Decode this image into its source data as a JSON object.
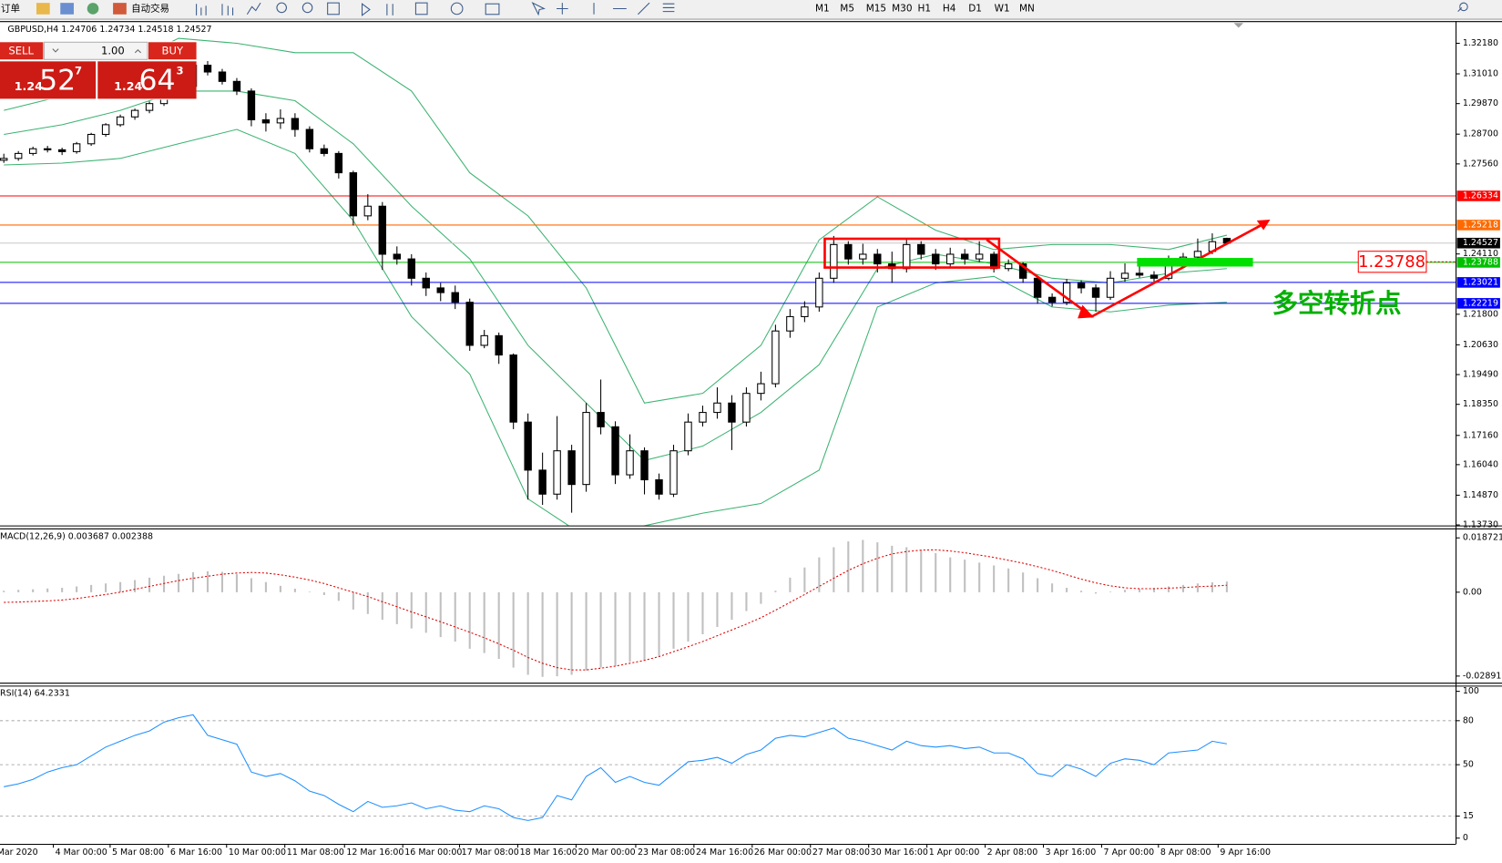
{
  "toolbar": {
    "orders": "订单",
    "autotrade": "自动交易",
    "periods": [
      "M1",
      "M5",
      "M15",
      "M30",
      "H1",
      "H4",
      "D1",
      "W1",
      "MN"
    ]
  },
  "trade_panel": {
    "sell": "SELL",
    "buy": "BUY",
    "lot": "1.00",
    "sell_big": "1.24",
    "sell_pips": "52",
    "sell_frac": "7",
    "buy_big": "1.24",
    "buy_pips": "64",
    "buy_frac": "3"
  },
  "chart_data": [
    {
      "type": "candlestick",
      "title": "GBPUSD,H4  1.24706 1.24734 1.24518 1.24527",
      "open": [
        1.277,
        1.2777,
        1.2796,
        1.2814,
        1.281,
        1.2803,
        1.2833,
        1.2869,
        1.2906,
        1.2936,
        1.2961,
        1.2987,
        1.3016,
        1.3053,
        1.3134,
        1.3108,
        1.3072,
        1.3035,
        1.2925,
        1.2913,
        1.293,
        1.2888,
        1.2814,
        1.2796,
        1.2722,
        1.2557,
        1.2594,
        1.241,
        1.2392,
        1.2318,
        1.2281,
        1.2263,
        1.2226,
        1.2061,
        1.2098,
        1.2024,
        1.1767,
        1.1583,
        1.1491,
        1.1657,
        1.1528,
        1.1804,
        1.1749,
        1.1565,
        1.1657,
        1.1546,
        1.1491,
        1.1657,
        1.1767,
        1.1804,
        1.184,
        1.1767,
        1.1877,
        1.1914,
        1.2116,
        1.2171,
        1.2208,
        1.2318,
        1.2447,
        1.2392,
        1.241,
        1.2373,
        1.2355,
        1.2447,
        1.241,
        1.2373,
        1.241,
        1.2392,
        1.241,
        1.2355,
        1.2373,
        1.2318,
        1.2245,
        1.2226,
        1.23,
        1.2281,
        1.2245,
        1.2318,
        1.2337,
        1.233,
        1.2318,
        1.2392,
        1.2399,
        1.2421,
        1.24706
      ],
      "high": [
        1.2795,
        1.2805,
        1.2822,
        1.2825,
        1.2818,
        1.284,
        1.2875,
        1.2912,
        1.2945,
        1.2968,
        1.2995,
        1.3025,
        1.307,
        1.32,
        1.315,
        1.312,
        1.3085,
        1.3045,
        1.295,
        1.2965,
        1.295,
        1.29,
        1.283,
        1.2805,
        1.273,
        1.264,
        1.261,
        1.244,
        1.241,
        1.234,
        1.23,
        1.229,
        1.224,
        1.212,
        1.211,
        1.203,
        1.18,
        1.165,
        1.179,
        1.168,
        1.184,
        1.193,
        1.177,
        1.172,
        1.167,
        1.157,
        1.168,
        1.18,
        1.183,
        1.19,
        1.187,
        1.19,
        1.196,
        1.214,
        1.22,
        1.223,
        1.234,
        1.248,
        1.246,
        1.245,
        1.243,
        1.242,
        1.247,
        1.246,
        1.243,
        1.2435,
        1.243,
        1.246,
        1.242,
        1.239,
        1.238,
        1.2325,
        1.226,
        1.2315,
        1.231,
        1.2295,
        1.2345,
        1.2375,
        1.2365,
        1.2345,
        1.2405,
        1.2415,
        1.247,
        1.249,
        1.24734
      ],
      "low": [
        1.276,
        1.2768,
        1.2788,
        1.28,
        1.279,
        1.2795,
        1.2825,
        1.286,
        1.2898,
        1.2925,
        1.295,
        1.2978,
        1.3005,
        1.304,
        1.3095,
        1.306,
        1.302,
        1.29,
        1.288,
        1.289,
        1.286,
        1.28,
        1.2785,
        1.27,
        1.252,
        1.254,
        1.235,
        1.237,
        1.229,
        1.225,
        1.223,
        1.22,
        1.204,
        1.205,
        1.199,
        1.174,
        1.147,
        1.145,
        1.147,
        1.142,
        1.15,
        1.172,
        1.153,
        1.155,
        1.149,
        1.147,
        1.148,
        1.164,
        1.175,
        1.178,
        1.166,
        1.175,
        1.185,
        1.19,
        1.209,
        1.215,
        1.219,
        1.23,
        1.237,
        1.237,
        1.234,
        1.23,
        1.234,
        1.239,
        1.235,
        1.236,
        1.237,
        1.238,
        1.234,
        1.2345,
        1.23,
        1.222,
        1.221,
        1.2215,
        1.226,
        1.219,
        1.2235,
        1.2305,
        1.232,
        1.23,
        1.231,
        1.238,
        1.239,
        1.241,
        1.24518
      ],
      "close": [
        1.2777,
        1.2796,
        1.2814,
        1.281,
        1.2803,
        1.2833,
        1.2869,
        1.2906,
        1.2936,
        1.2961,
        1.2987,
        1.3016,
        1.3053,
        1.3134,
        1.3108,
        1.3072,
        1.3035,
        1.2925,
        1.2913,
        1.293,
        1.2888,
        1.2814,
        1.2796,
        1.2722,
        1.2557,
        1.2594,
        1.241,
        1.2392,
        1.2318,
        1.2281,
        1.2263,
        1.2226,
        1.2061,
        1.2098,
        1.2024,
        1.1767,
        1.1583,
        1.1491,
        1.1657,
        1.1528,
        1.1804,
        1.1749,
        1.1565,
        1.1657,
        1.1546,
        1.1491,
        1.1657,
        1.1767,
        1.1804,
        1.184,
        1.1767,
        1.1877,
        1.1914,
        1.2116,
        1.2171,
        1.2208,
        1.2318,
        1.2447,
        1.2392,
        1.241,
        1.2373,
        1.2355,
        1.2447,
        1.241,
        1.2373,
        1.241,
        1.2392,
        1.241,
        1.2355,
        1.2373,
        1.2318,
        1.2245,
        1.2226,
        1.23,
        1.2281,
        1.2245,
        1.2318,
        1.2337,
        1.233,
        1.2318,
        1.2392,
        1.2399,
        1.2421,
        1.2458,
        1.24527
      ],
      "up_color": "#ffffff",
      "down_color": "#000000",
      "bands": {
        "color": "#3cb371",
        "x": [
          0,
          4,
          8,
          12,
          16,
          20,
          24,
          28,
          32,
          36,
          40,
          44,
          48,
          52,
          56,
          60,
          64,
          68,
          72,
          76,
          80,
          84
        ],
        "upper": [
          1.2961,
          1.3016,
          1.3127,
          1.3237,
          1.3218,
          1.3182,
          1.3182,
          1.3035,
          1.2722,
          1.2557,
          1.2281,
          1.184,
          1.1877,
          1.2061,
          1.2465,
          1.263,
          1.2502,
          1.2428,
          1.2447,
          1.2447,
          1.2428,
          1.2483
        ],
        "middle": [
          1.2869,
          1.2906,
          1.2961,
          1.3035,
          1.3035,
          1.2998,
          1.2833,
          1.2594,
          1.2392,
          1.2061,
          1.184,
          1.162,
          1.1675,
          1.1804,
          1.1987,
          1.2355,
          1.241,
          1.2373,
          1.2318,
          1.23,
          1.2337,
          1.2355
        ],
        "lower": [
          1.2752,
          1.2759,
          1.2777,
          1.2833,
          1.2888,
          1.2796,
          1.2539,
          1.2171,
          1.1951,
          1.1473,
          1.1326,
          1.137,
          1.1418,
          1.1455,
          1.1583,
          1.2208,
          1.23,
          1.2325,
          1.2208,
          1.2189,
          1.2215,
          1.2226
        ]
      },
      "levels": [
        {
          "value": 1.26334,
          "color": "#ff0000"
        },
        {
          "value": 1.25218,
          "color": "#ff6a00"
        },
        {
          "value": 1.24527,
          "color": "#000000",
          "line_color": "#c8c8c8"
        },
        {
          "value": 1.23788,
          "color": "#00c000"
        },
        {
          "value": 1.23021,
          "color": "#0000ff"
        },
        {
          "value": 1.22219,
          "color": "#0000ff"
        }
      ],
      "annotations": {
        "label": "1.23788",
        "note": "多空转折点"
      },
      "ylim": [
        1.1371,
        1.3303
      ],
      "yticks": [
        {
          "value": 1.3218,
          "label": "1.32180"
        },
        {
          "value": 1.3101,
          "label": "1.31010"
        },
        {
          "value": 1.2987,
          "label": "1.29870"
        },
        {
          "value": 1.287,
          "label": "1.28700"
        },
        {
          "value": 1.2756,
          "label": "1.27560"
        },
        {
          "value": 1.2411,
          "label": "1.24110"
        },
        {
          "value": 1.218,
          "label": "1.21800"
        },
        {
          "value": 1.2063,
          "label": "1.20630"
        },
        {
          "value": 1.1949,
          "label": "1.19490"
        },
        {
          "value": 1.1835,
          "label": "1.18350"
        },
        {
          "value": 1.1716,
          "label": "1.17160"
        },
        {
          "value": 1.1604,
          "label": "1.16040"
        },
        {
          "value": 1.1487,
          "label": "1.14870"
        },
        {
          "value": 1.1373,
          "label": "1.13730"
        }
      ],
      "xlim": [
        -0.263,
        99.74
      ],
      "xticks": [
        {
          "value": -0.6,
          "label": "Mar 2020"
        },
        {
          "value": 3.4,
          "label": "4 Mar 00:00"
        },
        {
          "value": 7.3,
          "label": "5 Mar 08:00"
        },
        {
          "value": 11.3,
          "label": "6 Mar 16:00"
        },
        {
          "value": 15.3,
          "label": "10 Mar 00:00"
        },
        {
          "value": 19.3,
          "label": "11 Mar 08:00"
        },
        {
          "value": 23.4,
          "label": "12 Mar 16:00"
        },
        {
          "value": 27.4,
          "label": "16 Mar 00:00"
        },
        {
          "value": 31.3,
          "label": "17 Mar 08:00"
        },
        {
          "value": 35.3,
          "label": "18 Mar 16:00"
        },
        {
          "value": 39.3,
          "label": "20 Mar 00:00"
        },
        {
          "value": 43.4,
          "label": "23 Mar 08:00"
        },
        {
          "value": 47.4,
          "label": "24 Mar 16:00"
        },
        {
          "value": 51.4,
          "label": "26 Mar 00:00"
        },
        {
          "value": 55.4,
          "label": "27 Mar 08:00"
        },
        {
          "value": 59.4,
          "label": "30 Mar 16:00"
        },
        {
          "value": 63.4,
          "label": "1 Apr 00:00"
        },
        {
          "value": 67.4,
          "label": "2 Apr 08:00"
        },
        {
          "value": 71.4,
          "label": "3 Apr 16:00"
        },
        {
          "value": 75.4,
          "label": "7 Apr 00:00"
        },
        {
          "value": 79.3,
          "label": "8 Apr 08:00"
        },
        {
          "value": 83.4,
          "label": "9 Apr 16:00"
        }
      ]
    },
    {
      "type": "macd",
      "title": "MACD(12,26,9) 0.003687 0.002388",
      "histogram": [
        0.0005,
        0.0008,
        0.001,
        0.0013,
        0.0015,
        0.002,
        0.0025,
        0.003,
        0.0035,
        0.0042,
        0.005,
        0.0057,
        0.0063,
        0.0069,
        0.0072,
        0.007,
        0.0062,
        0.0048,
        0.0035,
        0.0022,
        0.0012,
        0.0002,
        -0.001,
        -0.003,
        -0.006,
        -0.0075,
        -0.0095,
        -0.011,
        -0.0125,
        -0.014,
        -0.0155,
        -0.017,
        -0.0195,
        -0.021,
        -0.023,
        -0.026,
        -0.0285,
        -0.0292,
        -0.029,
        -0.0285,
        -0.027,
        -0.026,
        -0.0255,
        -0.024,
        -0.0235,
        -0.022,
        -0.0195,
        -0.017,
        -0.0145,
        -0.012,
        -0.0095,
        -0.0065,
        -0.004,
        0.0005,
        0.005,
        0.0085,
        0.012,
        0.0155,
        0.0175,
        0.018,
        0.0172,
        0.016,
        0.0155,
        0.0145,
        0.0135,
        0.012,
        0.0112,
        0.0102,
        0.0092,
        0.0082,
        0.0068,
        0.0048,
        0.003,
        0.0015,
        0.0005,
        -0.0005,
        0.0002,
        0.0008,
        0.0012,
        0.0015,
        0.002,
        0.0025,
        0.003,
        0.0034,
        0.003687
      ],
      "signal": [
        -0.0035,
        -0.0034,
        -0.0032,
        -0.003,
        -0.0027,
        -0.0022,
        -0.0015,
        -0.0008,
        0.0,
        0.001,
        0.002,
        0.003,
        0.004,
        0.0048,
        0.0055,
        0.0062,
        0.0066,
        0.0068,
        0.0066,
        0.006,
        0.0052,
        0.0042,
        0.003,
        0.0015,
        0.0,
        -0.0015,
        -0.0033,
        -0.005,
        -0.0068,
        -0.0085,
        -0.0102,
        -0.012,
        -0.0138,
        -0.0157,
        -0.0178,
        -0.02,
        -0.0225,
        -0.0245,
        -0.026,
        -0.0268,
        -0.0268,
        -0.0262,
        -0.0255,
        -0.0245,
        -0.0235,
        -0.0222,
        -0.0205,
        -0.0188,
        -0.017,
        -0.015,
        -0.013,
        -0.011,
        -0.0088,
        -0.0062,
        -0.0035,
        -0.0008,
        0.002,
        0.0048,
        0.0075,
        0.0098,
        0.0117,
        0.0132,
        0.014,
        0.0145,
        0.0146,
        0.0142,
        0.0136,
        0.0128,
        0.012,
        0.011,
        0.01,
        0.0088,
        0.0075,
        0.006,
        0.0045,
        0.0032,
        0.0022,
        0.0015,
        0.0012,
        0.0012,
        0.0014,
        0.0016,
        0.0019,
        0.0021,
        0.002388
      ],
      "histogram_color": "#c0c0c0",
      "signal_color": "#e00000",
      "ylim": [
        -0.03121,
        0.02201
      ],
      "yticks": [
        0.018721,
        {
          "value": 0,
          "label": "0.00"
        },
        -0.028913
      ]
    },
    {
      "type": "line",
      "title": "RSI(14) 64.2331",
      "values": [
        35,
        37,
        40,
        45,
        48,
        50,
        56,
        62,
        66,
        70,
        73,
        79,
        82,
        84,
        70,
        67,
        64,
        45,
        42,
        44,
        39,
        32,
        29,
        23,
        18,
        25,
        21,
        22,
        24,
        20,
        22,
        19,
        18,
        22,
        20,
        14,
        12,
        14,
        29,
        26,
        42,
        48,
        38,
        42,
        38,
        36,
        44,
        52,
        53,
        55,
        51,
        57,
        60,
        68,
        70,
        69,
        72,
        75,
        68,
        66,
        63,
        60,
        66,
        63,
        62,
        63,
        61,
        62,
        58,
        58,
        54,
        44,
        42,
        50,
        47,
        42,
        51,
        54,
        53,
        50,
        58,
        59,
        60,
        66,
        64.2331
      ],
      "color": "#1e90ff",
      "ylim": [
        -3.9,
        103.9
      ],
      "yticks": [
        100,
        80,
        50,
        15,
        0
      ],
      "levels": [
        80,
        50,
        15
      ]
    }
  ]
}
